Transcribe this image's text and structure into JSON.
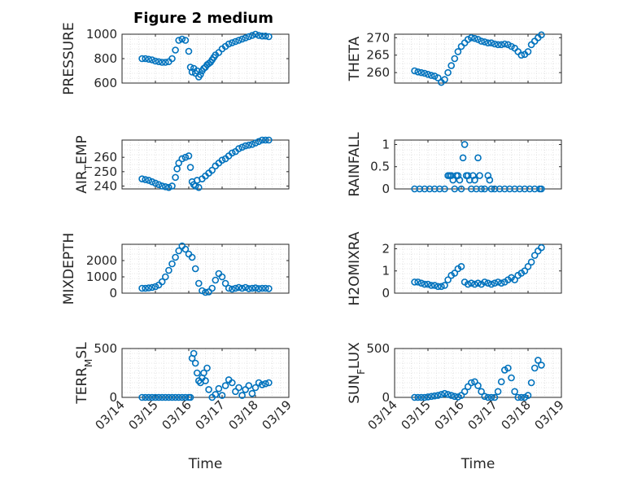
{
  "figure_title": "Figure 2 medium",
  "colors": {
    "marker": "#0072BD",
    "axis": "#262626",
    "grid": "#dcdcdc"
  },
  "chart_data": [
    {
      "type": "scatter",
      "title": "",
      "ylabel": "PRESSURE",
      "ylabel_main": "PRESSURE",
      "ylabel_sub": "",
      "ylabel_rest": "",
      "xlim": [
        0,
        5
      ],
      "ylim": [
        600,
        1000
      ],
      "yticks": [
        600,
        800,
        1000
      ],
      "ytick_labels": [
        "600",
        "800",
        "1000"
      ],
      "x_tick_labels_shown": false,
      "x": [
        0.6,
        0.7,
        0.8,
        0.9,
        1.0,
        1.1,
        1.2,
        1.3,
        1.4,
        1.5,
        1.6,
        1.7,
        1.8,
        1.9,
        2.0,
        2.05,
        2.1,
        2.15,
        2.2,
        2.25,
        2.3,
        2.35,
        2.4,
        2.45,
        2.5,
        2.55,
        2.6,
        2.65,
        2.7,
        2.75,
        2.8,
        2.9,
        3.0,
        3.1,
        3.2,
        3.3,
        3.4,
        3.5,
        3.6,
        3.7,
        3.8,
        3.9,
        4.0,
        4.1,
        4.2,
        4.3,
        4.4
      ],
      "y": [
        800,
        800,
        795,
        790,
        780,
        775,
        770,
        770,
        775,
        800,
        870,
        950,
        960,
        950,
        860,
        730,
        690,
        720,
        680,
        700,
        650,
        670,
        700,
        720,
        730,
        750,
        760,
        770,
        790,
        810,
        830,
        850,
        880,
        900,
        920,
        930,
        940,
        950,
        960,
        970,
        980,
        990,
        1000,
        990,
        985,
        985,
        980
      ]
    },
    {
      "type": "scatter",
      "title": "",
      "ylabel": "THETA",
      "ylabel_main": "THETA",
      "ylabel_sub": "",
      "ylabel_rest": "",
      "xlim": [
        0,
        5
      ],
      "ylim": [
        257,
        271
      ],
      "yticks": [
        260,
        265,
        270
      ],
      "ytick_labels": [
        "260",
        "265",
        "270"
      ],
      "x_tick_labels_shown": false,
      "x": [
        0.6,
        0.7,
        0.8,
        0.9,
        1.0,
        1.1,
        1.2,
        1.3,
        1.4,
        1.5,
        1.6,
        1.7,
        1.8,
        1.9,
        2.0,
        2.1,
        2.2,
        2.3,
        2.4,
        2.5,
        2.6,
        2.7,
        2.8,
        2.9,
        3.0,
        3.1,
        3.2,
        3.3,
        3.4,
        3.5,
        3.6,
        3.7,
        3.8,
        3.9,
        4.0,
        4.1,
        4.2,
        4.3,
        4.4
      ],
      "y": [
        260.5,
        260.2,
        260,
        259.8,
        259.5,
        259.2,
        259,
        258.5,
        257.2,
        258,
        260,
        262,
        264,
        266,
        267.5,
        268.5,
        269.5,
        270,
        269.8,
        269.5,
        269,
        268.8,
        268.5,
        268.5,
        268.2,
        268,
        268,
        268.2,
        268,
        267.5,
        267,
        266,
        265,
        265.2,
        266,
        268,
        269,
        270,
        270.8
      ]
    },
    {
      "type": "scatter",
      "title": "",
      "ylabel": "AIR_TEMP",
      "ylabel_main": "AIR",
      "ylabel_sub": "T",
      "ylabel_rest": "EMP",
      "xlim": [
        0,
        5
      ],
      "ylim": [
        238,
        272
      ],
      "yticks": [
        240,
        250,
        260
      ],
      "ytick_labels": [
        "240",
        "250",
        "260"
      ],
      "x_tick_labels_shown": false,
      "x": [
        0.6,
        0.7,
        0.8,
        0.9,
        1.0,
        1.1,
        1.2,
        1.3,
        1.4,
        1.5,
        1.6,
        1.65,
        1.7,
        1.8,
        1.9,
        2.0,
        2.05,
        2.1,
        2.15,
        2.2,
        2.25,
        2.3,
        2.4,
        2.5,
        2.6,
        2.7,
        2.8,
        2.9,
        3.0,
        3.1,
        3.2,
        3.3,
        3.4,
        3.5,
        3.6,
        3.7,
        3.8,
        3.9,
        4.0,
        4.1,
        4.2,
        4.3,
        4.4
      ],
      "y": [
        245,
        244.5,
        244,
        243,
        242,
        241,
        240,
        239.5,
        239,
        240,
        246,
        252,
        256,
        259,
        260,
        261,
        253,
        243,
        241,
        240,
        244,
        239,
        245,
        247,
        249,
        251,
        254,
        256,
        258,
        259,
        261,
        263,
        264,
        266,
        267,
        268,
        268.5,
        269,
        270,
        271,
        272,
        272,
        272
      ]
    },
    {
      "type": "scatter",
      "title": "",
      "ylabel": "RAINFALL",
      "ylabel_main": "RAINFALL",
      "ylabel_sub": "",
      "ylabel_rest": "",
      "xlim": [
        0,
        5
      ],
      "ylim": [
        0,
        1.1
      ],
      "yticks": [
        0,
        0.5,
        1
      ],
      "ytick_labels": [
        "0",
        "0.5",
        "1"
      ],
      "x_tick_labels_shown": false,
      "x": [
        0.6,
        0.75,
        0.9,
        1.05,
        1.2,
        1.35,
        1.5,
        1.6,
        1.65,
        1.7,
        1.75,
        1.8,
        1.85,
        1.9,
        1.95,
        2.0,
        2.05,
        2.1,
        2.15,
        2.2,
        2.25,
        2.3,
        2.35,
        2.4,
        2.45,
        2.5,
        2.55,
        2.6,
        2.7,
        2.8,
        2.85,
        2.9,
        3.0,
        3.15,
        3.3,
        3.45,
        3.6,
        3.75,
        3.9,
        4.05,
        4.2,
        4.35,
        4.4
      ],
      "y": [
        0,
        0,
        0,
        0,
        0,
        0,
        0,
        0.3,
        0.3,
        0.3,
        0.2,
        0,
        0.3,
        0.3,
        0.2,
        0,
        0.7,
        1.0,
        0.3,
        0.3,
        0.2,
        0,
        0.3,
        0.2,
        0,
        0.7,
        0.3,
        0,
        0,
        0.3,
        0.2,
        0,
        0,
        0,
        0,
        0,
        0,
        0,
        0,
        0,
        0,
        0,
        0
      ]
    },
    {
      "type": "scatter",
      "title": "",
      "ylabel": "MIXDEPTH",
      "ylabel_main": "MIXDEPTH",
      "ylabel_sub": "",
      "ylabel_rest": "",
      "xlim": [
        0,
        5
      ],
      "ylim": [
        0,
        3000
      ],
      "yticks": [
        0,
        1000,
        2000
      ],
      "ytick_labels": [
        "0",
        "1000",
        "2000"
      ],
      "x_tick_labels_shown": false,
      "x": [
        0.6,
        0.7,
        0.8,
        0.9,
        1.0,
        1.1,
        1.2,
        1.3,
        1.4,
        1.5,
        1.6,
        1.7,
        1.8,
        1.9,
        2.0,
        2.1,
        2.2,
        2.3,
        2.4,
        2.5,
        2.6,
        2.7,
        2.8,
        2.9,
        3.0,
        3.1,
        3.2,
        3.3,
        3.4,
        3.5,
        3.6,
        3.7,
        3.8,
        3.9,
        4.0,
        4.1,
        4.2,
        4.3,
        4.4
      ],
      "y": [
        300,
        300,
        320,
        350,
        400,
        500,
        700,
        1000,
        1400,
        1800,
        2200,
        2600,
        2900,
        2700,
        2400,
        2200,
        1500,
        600,
        150,
        50,
        80,
        300,
        800,
        1200,
        1000,
        600,
        300,
        250,
        300,
        350,
        300,
        350,
        280,
        300,
        320,
        280,
        300,
        300,
        280
      ]
    },
    {
      "type": "scatter",
      "title": "",
      "ylabel": "H2OMIXRA",
      "ylabel_main": "H2OMIXRA",
      "ylabel_sub": "",
      "ylabel_rest": "",
      "xlim": [
        0,
        5
      ],
      "ylim": [
        0,
        2.2
      ],
      "yticks": [
        0,
        1,
        2
      ],
      "ytick_labels": [
        "0",
        "1",
        "2"
      ],
      "x_tick_labels_shown": false,
      "x": [
        0.6,
        0.7,
        0.8,
        0.9,
        1.0,
        1.1,
        1.2,
        1.3,
        1.4,
        1.5,
        1.6,
        1.7,
        1.8,
        1.9,
        2.0,
        2.1,
        2.2,
        2.3,
        2.4,
        2.5,
        2.6,
        2.7,
        2.8,
        2.9,
        3.0,
        3.1,
        3.2,
        3.3,
        3.4,
        3.5,
        3.6,
        3.7,
        3.8,
        3.9,
        4.0,
        4.1,
        4.2,
        4.3,
        4.4
      ],
      "y": [
        0.5,
        0.5,
        0.45,
        0.4,
        0.4,
        0.35,
        0.35,
        0.3,
        0.3,
        0.35,
        0.6,
        0.8,
        0.9,
        1.1,
        1.2,
        0.5,
        0.4,
        0.45,
        0.4,
        0.45,
        0.4,
        0.5,
        0.45,
        0.4,
        0.45,
        0.5,
        0.45,
        0.5,
        0.6,
        0.7,
        0.6,
        0.8,
        0.9,
        1.0,
        1.2,
        1.4,
        1.7,
        1.9,
        2.05
      ]
    },
    {
      "type": "scatter",
      "title": "",
      "ylabel": "TERR_MSL",
      "ylabel_main": "TERR",
      "ylabel_sub": "M",
      "ylabel_rest": "SL",
      "xlim": [
        0,
        5
      ],
      "ylim": [
        0,
        500
      ],
      "yticks": [
        0,
        500
      ],
      "ytick_labels": [
        "0",
        "500"
      ],
      "x_tick_labels_shown": true,
      "x": [
        0.6,
        0.7,
        0.8,
        0.9,
        1.0,
        1.1,
        1.2,
        1.3,
        1.4,
        1.5,
        1.6,
        1.7,
        1.8,
        1.9,
        2.0,
        2.05,
        2.1,
        2.15,
        2.2,
        2.25,
        2.3,
        2.35,
        2.4,
        2.45,
        2.5,
        2.55,
        2.6,
        2.7,
        2.8,
        2.9,
        3.0,
        3.1,
        3.2,
        3.3,
        3.4,
        3.5,
        3.6,
        3.7,
        3.8,
        3.9,
        4.0,
        4.1,
        4.2,
        4.3,
        4.4
      ],
      "y": [
        0,
        0,
        0,
        0,
        0,
        0,
        0,
        0,
        0,
        0,
        0,
        0,
        0,
        0,
        0,
        0,
        400,
        450,
        350,
        250,
        170,
        150,
        200,
        250,
        170,
        300,
        80,
        0,
        30,
        90,
        20,
        120,
        180,
        150,
        60,
        100,
        20,
        80,
        120,
        40,
        100,
        150,
        130,
        140,
        150
      ]
    },
    {
      "type": "scatter",
      "title": "",
      "ylabel": "SUN_FLUX",
      "ylabel_main": "SUN",
      "ylabel_sub": "F",
      "ylabel_rest": "LUX",
      "xlim": [
        0,
        5
      ],
      "ylim": [
        0,
        500
      ],
      "yticks": [
        0,
        500
      ],
      "ytick_labels": [
        "0",
        "500"
      ],
      "x_tick_labels_shown": true,
      "x": [
        0.6,
        0.7,
        0.8,
        0.9,
        1.0,
        1.1,
        1.2,
        1.3,
        1.4,
        1.5,
        1.6,
        1.7,
        1.8,
        1.9,
        2.0,
        2.1,
        2.2,
        2.3,
        2.4,
        2.5,
        2.6,
        2.7,
        2.8,
        2.9,
        3.0,
        3.1,
        3.2,
        3.3,
        3.4,
        3.5,
        3.6,
        3.7,
        3.8,
        3.9,
        4.0,
        4.1,
        4.2,
        4.3,
        4.4
      ],
      "y": [
        0,
        0,
        0,
        0,
        5,
        10,
        15,
        20,
        30,
        40,
        30,
        20,
        10,
        5,
        20,
        60,
        110,
        150,
        160,
        120,
        60,
        10,
        0,
        0,
        0,
        60,
        160,
        280,
        300,
        200,
        60,
        0,
        0,
        0,
        20,
        150,
        300,
        380,
        330
      ]
    }
  ],
  "x_tick_labels": [
    "03/14",
    "03/15",
    "03/16",
    "03/17",
    "03/18",
    "03/19"
  ],
  "xlabel": "Time"
}
